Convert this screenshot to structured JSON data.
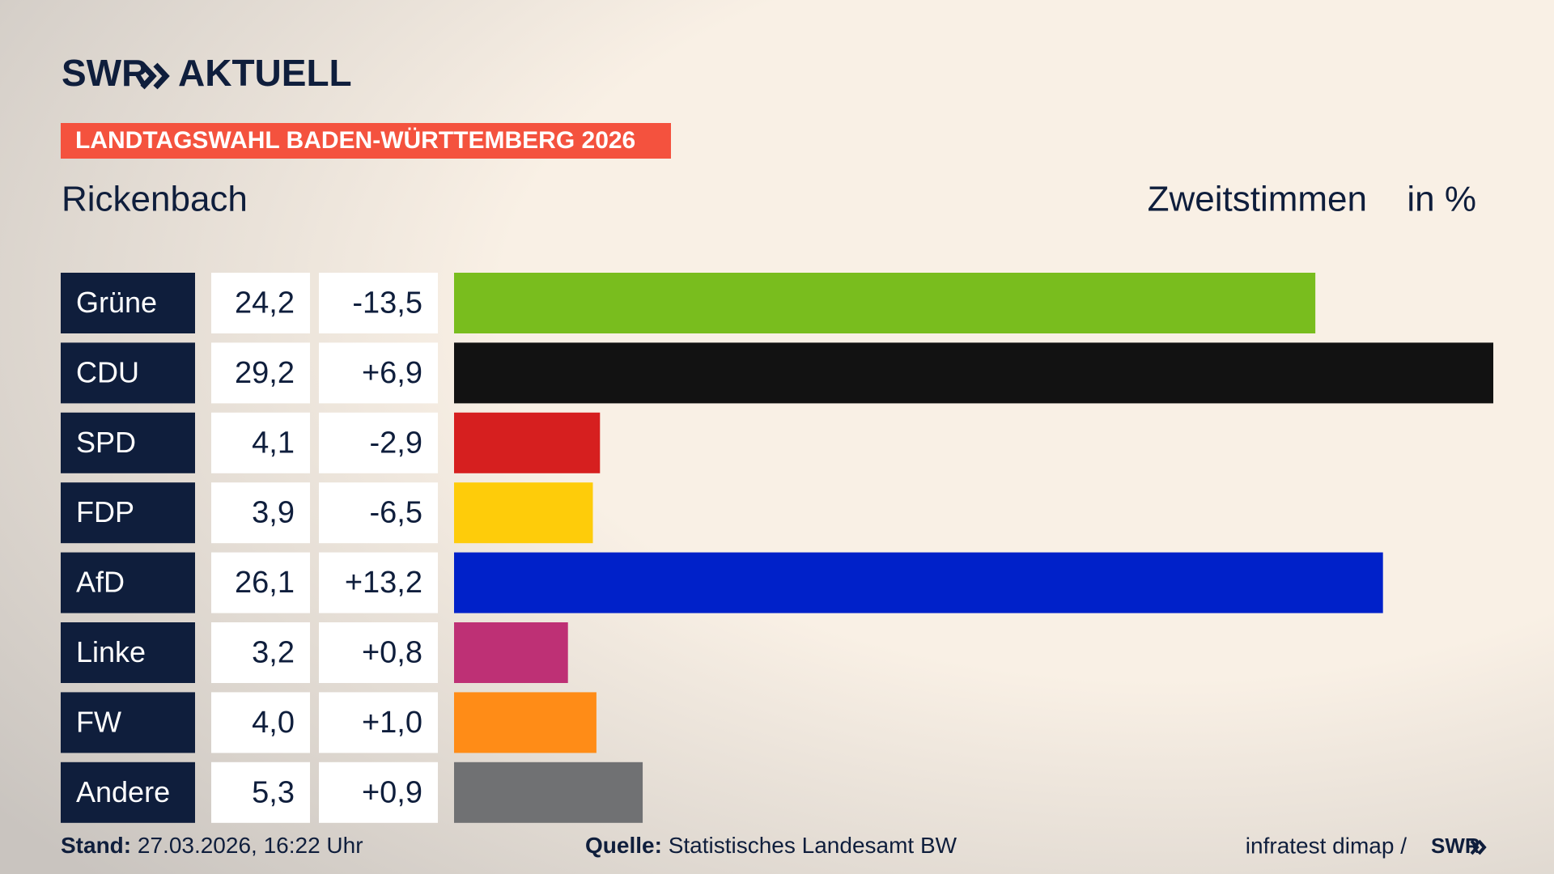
{
  "chart_data": {
    "type": "bar",
    "logo": "SWR",
    "logo_suffix": "AKTUELL",
    "banner": "LANDTAGSWAHL BADEN-WÜRTTEMBERG 2026",
    "title": "Rickenbach",
    "subtitle": "Zweitstimmen",
    "unit": "in %",
    "categories": [
      "Grüne",
      "CDU",
      "SPD",
      "FDP",
      "AfD",
      "Linke",
      "FW",
      "Andere"
    ],
    "values": [
      24.2,
      29.2,
      4.1,
      3.9,
      26.1,
      3.2,
      4.0,
      5.3
    ],
    "value_labels": [
      "24,2",
      "29,2",
      "4,1",
      "3,9",
      "26,1",
      "3,2",
      "4,0",
      "5,3"
    ],
    "changes": [
      -13.5,
      6.9,
      -2.9,
      -6.5,
      13.2,
      0.8,
      1.0,
      0.9
    ],
    "change_labels": [
      "-13,5",
      "+6,9",
      "-2,9",
      "-6,5",
      "+13,2",
      "+0,8",
      "+1,0",
      "+0,9"
    ],
    "colors": [
      "#79bd1e",
      "#121212",
      "#d61f1f",
      "#fecc0a",
      "#0021c9",
      "#be3075",
      "#ff8c17",
      "#707173"
    ],
    "footer": {
      "stand_label": "Stand:",
      "stand": "27.03.2026, 16:22 Uhr",
      "source_label": "Quelle:",
      "source": "Statistisches Landesamt BW",
      "credit": "infratest dimap /",
      "credit_logo": "SWR"
    }
  }
}
